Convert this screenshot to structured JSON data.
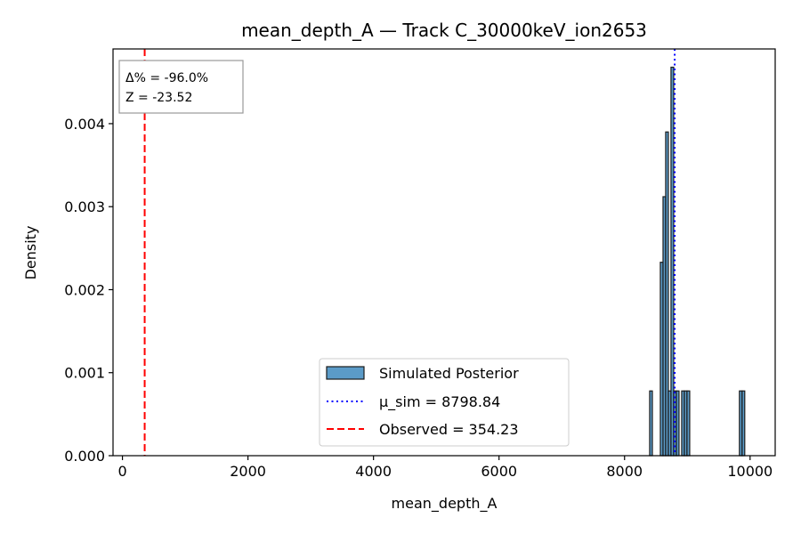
{
  "chart_data": {
    "type": "bar",
    "title": "mean_depth_A — Track C_30000keV_ion2653",
    "xlabel": "mean_depth_A",
    "ylabel": "Density",
    "xlim": [
      -150,
      10400
    ],
    "ylim": [
      0,
      0.0049
    ],
    "xticks": [
      0,
      2000,
      4000,
      6000,
      8000,
      10000
    ],
    "yticks": [
      0.0,
      0.001,
      0.002,
      0.003,
      0.004
    ],
    "ytick_labels": [
      "0.000",
      "0.001",
      "0.002",
      "0.003",
      "0.004"
    ],
    "bin_width": 42.5,
    "bins": [
      {
        "x0": 8400,
        "x1": 8443,
        "density": 0.00078
      },
      {
        "x0": 8570,
        "x1": 8613,
        "density": 0.00233
      },
      {
        "x0": 8613,
        "x1": 8655,
        "density": 0.00312
      },
      {
        "x0": 8655,
        "x1": 8698,
        "density": 0.0039
      },
      {
        "x0": 8698,
        "x1": 8740,
        "density": 0.00078
      },
      {
        "x0": 8740,
        "x1": 8783,
        "density": 0.00468
      },
      {
        "x0": 8783,
        "x1": 8825,
        "density": 0.00078
      },
      {
        "x0": 8825,
        "x1": 8868,
        "density": 0.00078
      },
      {
        "x0": 8910,
        "x1": 8953,
        "density": 0.00078
      },
      {
        "x0": 8953,
        "x1": 8995,
        "density": 0.00078
      },
      {
        "x0": 8995,
        "x1": 9038,
        "density": 0.00078
      },
      {
        "x0": 9830,
        "x1": 9873,
        "density": 0.00078
      },
      {
        "x0": 9873,
        "x1": 9915,
        "density": 0.00078
      }
    ],
    "mu_sim": 8798.84,
    "observed": 354.23,
    "legend": {
      "placement": "lower-center",
      "entries": [
        {
          "label": "Simulated Posterior",
          "kind": "patch"
        },
        {
          "label": "μ_sim = 8798.84",
          "kind": "dotted-line"
        },
        {
          "label": "Observed = 354.23",
          "kind": "dashed-line"
        }
      ]
    },
    "annotation": {
      "placement": "top-left",
      "lines": [
        "Δ% = -96.0%",
        "Z = -23.52"
      ]
    },
    "colors": {
      "bar_fill": "#5b9bc8",
      "bar_edge": "#1a1a1a",
      "mu_line": "#0000ff",
      "observed_line": "#ff0000"
    },
    "grid": false
  }
}
